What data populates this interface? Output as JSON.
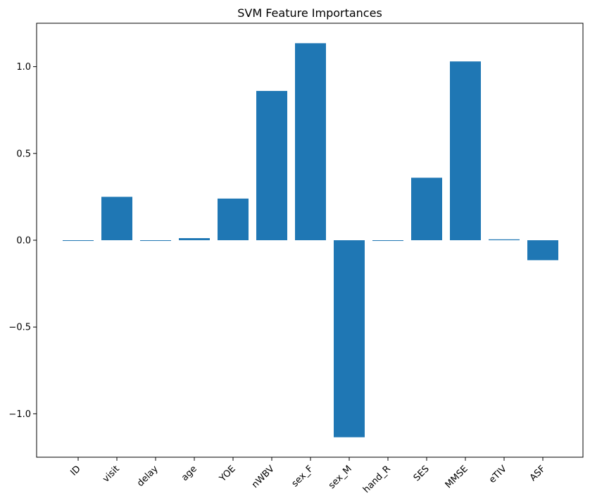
{
  "chart_data": {
    "type": "bar",
    "title": "SVM Feature Importances",
    "xlabel": "",
    "ylabel": "",
    "categories": [
      "ID",
      "visit",
      "delay",
      "age",
      "YOE",
      "nWBV",
      "sex_F",
      "sex_M",
      "hand_R",
      "SES",
      "MMSE",
      "eTIV",
      "ASF"
    ],
    "values": [
      -0.003,
      0.25,
      0.0,
      0.012,
      0.24,
      0.86,
      1.135,
      -1.135,
      0.0,
      0.36,
      1.03,
      0.005,
      -0.115
    ],
    "ylim": [
      -1.25,
      1.25
    ],
    "yticks": [
      -1.0,
      -0.5,
      0.0,
      0.5,
      1.0
    ],
    "ytick_labels": [
      "−1.0",
      "−0.5",
      "0.0",
      "0.5",
      "1.0"
    ],
    "bar_color": "#1f77b4",
    "grid": false,
    "legend": "none"
  }
}
